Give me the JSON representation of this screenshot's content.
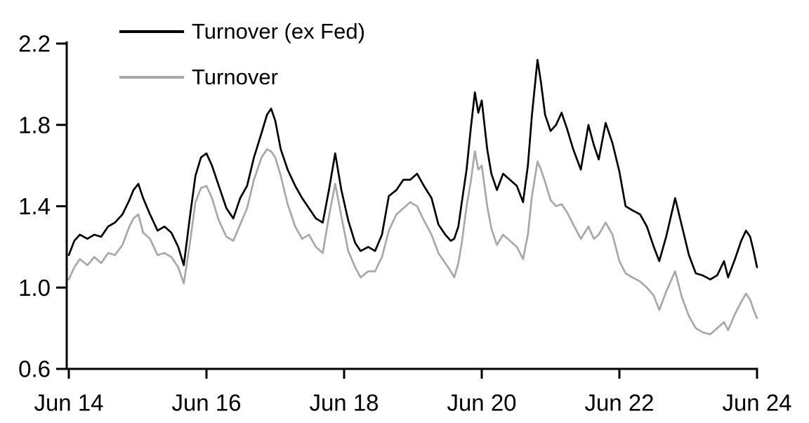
{
  "chart_data": {
    "type": "line",
    "title": "",
    "xlabel": "",
    "ylabel": "",
    "grid": false,
    "x_axis": {
      "tick_labels": [
        "Jun 14",
        "Jun 16",
        "Jun 18",
        "Jun 20",
        "Jun 22",
        "Jun 24"
      ],
      "tick_years": [
        0,
        2,
        4,
        6,
        8,
        10
      ],
      "range_years": [
        0,
        10
      ],
      "unit": "years since Jun 2014"
    },
    "y_axis": {
      "tick_labels": [
        "0.6",
        "1.0",
        "1.4",
        "1.8",
        "2.2"
      ],
      "tick_values": [
        0.6,
        1.0,
        1.4,
        1.8,
        2.2
      ],
      "range": [
        0.6,
        2.2
      ]
    },
    "legend": {
      "position": "top-left",
      "entries": [
        {
          "label": "Turnover (ex Fed)",
          "color": "#000000"
        },
        {
          "label": "Turnover",
          "color": "#a8a8a8"
        }
      ]
    },
    "x_years_since_jun14": [
      0.0,
      0.08,
      0.16,
      0.27,
      0.37,
      0.47,
      0.57,
      0.67,
      0.78,
      0.88,
      0.94,
      1.01,
      1.08,
      1.18,
      1.29,
      1.39,
      1.49,
      1.59,
      1.67,
      1.76,
      1.84,
      1.92,
      2.0,
      2.08,
      2.18,
      2.29,
      2.39,
      2.49,
      2.59,
      2.69,
      2.8,
      2.88,
      2.94,
      3.0,
      3.08,
      3.18,
      3.29,
      3.39,
      3.49,
      3.59,
      3.69,
      3.78,
      3.87,
      3.96,
      4.06,
      4.16,
      4.24,
      4.35,
      4.45,
      4.55,
      4.65,
      4.76,
      4.86,
      4.96,
      5.06,
      5.16,
      5.27,
      5.37,
      5.47,
      5.55,
      5.6,
      5.66,
      5.71,
      5.78,
      5.84,
      5.9,
      5.95,
      6.0,
      6.08,
      6.14,
      6.22,
      6.31,
      6.41,
      6.51,
      6.6,
      6.67,
      6.73,
      6.81,
      6.86,
      6.92,
      7.0,
      7.08,
      7.16,
      7.24,
      7.33,
      7.44,
      7.55,
      7.63,
      7.7,
      7.8,
      7.9,
      8.0,
      8.09,
      8.19,
      8.3,
      8.4,
      8.5,
      8.58,
      8.68,
      8.81,
      8.91,
      9.01,
      9.11,
      9.21,
      9.32,
      9.42,
      9.52,
      9.58,
      9.68,
      9.77,
      9.84,
      9.9,
      9.95,
      10.0
    ],
    "series": [
      {
        "name": "Turnover (ex Fed)",
        "color": "#000000",
        "values": [
          1.16,
          1.23,
          1.26,
          1.24,
          1.26,
          1.25,
          1.3,
          1.32,
          1.36,
          1.43,
          1.48,
          1.51,
          1.44,
          1.36,
          1.28,
          1.3,
          1.27,
          1.2,
          1.11,
          1.35,
          1.55,
          1.64,
          1.66,
          1.6,
          1.5,
          1.39,
          1.34,
          1.44,
          1.5,
          1.64,
          1.76,
          1.85,
          1.88,
          1.82,
          1.68,
          1.58,
          1.5,
          1.44,
          1.39,
          1.34,
          1.32,
          1.48,
          1.66,
          1.48,
          1.33,
          1.22,
          1.18,
          1.2,
          1.18,
          1.26,
          1.45,
          1.48,
          1.53,
          1.53,
          1.56,
          1.5,
          1.44,
          1.31,
          1.26,
          1.23,
          1.24,
          1.3,
          1.42,
          1.58,
          1.78,
          1.96,
          1.86,
          1.92,
          1.68,
          1.56,
          1.48,
          1.56,
          1.53,
          1.5,
          1.42,
          1.6,
          1.85,
          2.12,
          2.01,
          1.85,
          1.77,
          1.8,
          1.86,
          1.78,
          1.68,
          1.58,
          1.8,
          1.7,
          1.63,
          1.81,
          1.71,
          1.57,
          1.4,
          1.38,
          1.36,
          1.3,
          1.2,
          1.13,
          1.25,
          1.44,
          1.3,
          1.16,
          1.07,
          1.06,
          1.04,
          1.06,
          1.13,
          1.05,
          1.14,
          1.23,
          1.28,
          1.25,
          1.18,
          1.1
        ]
      },
      {
        "name": "Turnover",
        "color": "#a8a8a8",
        "values": [
          1.04,
          1.1,
          1.14,
          1.11,
          1.15,
          1.12,
          1.17,
          1.16,
          1.21,
          1.3,
          1.34,
          1.36,
          1.27,
          1.24,
          1.16,
          1.17,
          1.15,
          1.1,
          1.02,
          1.22,
          1.42,
          1.49,
          1.5,
          1.44,
          1.33,
          1.25,
          1.23,
          1.31,
          1.39,
          1.53,
          1.64,
          1.68,
          1.67,
          1.64,
          1.55,
          1.41,
          1.3,
          1.24,
          1.26,
          1.2,
          1.17,
          1.35,
          1.51,
          1.35,
          1.18,
          1.1,
          1.05,
          1.08,
          1.08,
          1.15,
          1.28,
          1.36,
          1.39,
          1.42,
          1.4,
          1.33,
          1.26,
          1.17,
          1.12,
          1.08,
          1.05,
          1.12,
          1.22,
          1.4,
          1.52,
          1.67,
          1.58,
          1.6,
          1.4,
          1.29,
          1.21,
          1.26,
          1.23,
          1.2,
          1.14,
          1.26,
          1.45,
          1.62,
          1.58,
          1.52,
          1.43,
          1.4,
          1.41,
          1.37,
          1.31,
          1.24,
          1.3,
          1.24,
          1.26,
          1.32,
          1.26,
          1.13,
          1.07,
          1.05,
          1.03,
          1.0,
          0.96,
          0.89,
          0.98,
          1.08,
          0.95,
          0.86,
          0.8,
          0.78,
          0.77,
          0.8,
          0.83,
          0.79,
          0.87,
          0.93,
          0.97,
          0.94,
          0.89,
          0.85
        ]
      }
    ]
  }
}
